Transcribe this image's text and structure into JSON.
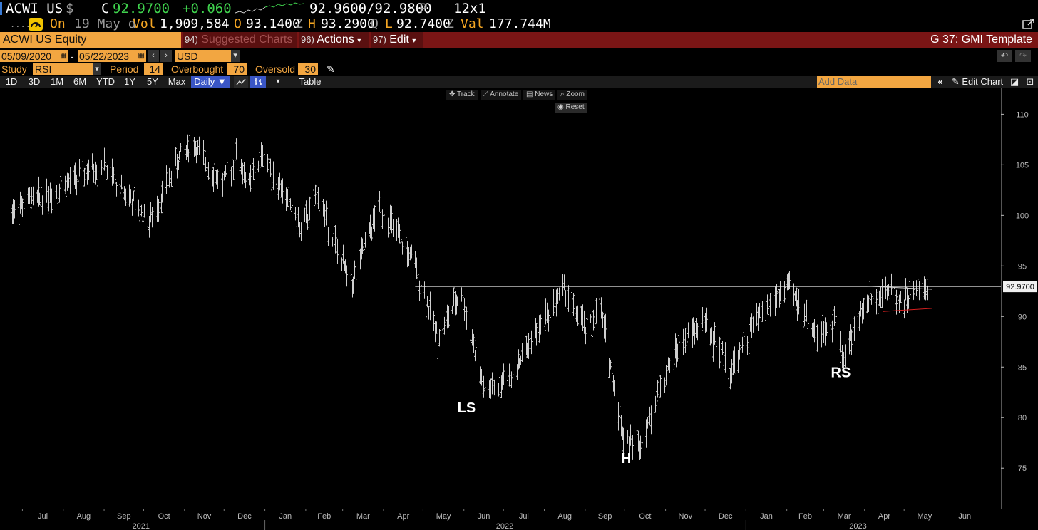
{
  "quote": {
    "ticker": "ACWI US",
    "currency_symbol": "$",
    "close_prefix": "C",
    "last": "92.9700",
    "change": "+0.060",
    "bid_ask": "92.9600/92.9800",
    "bid_ask_suffix": "P",
    "size": "12x1",
    "on_prefix": "On",
    "date": "19 May d",
    "vol_label": "Vol",
    "volume": "1,909,584",
    "open_label": "O",
    "open": "93.1400",
    "open_suffix": "Z",
    "high_label": "H",
    "high": "93.2900",
    "high_suffix": "Q",
    "low_label": "L",
    "low": "92.7400",
    "low_suffix": "Z",
    "val_label": "Val",
    "value": "177.744M"
  },
  "titlebar": {
    "security": "ACWI US Equity",
    "suggested_num": "94)",
    "suggested": "Suggested Charts",
    "actions_num": "96)",
    "actions": "Actions",
    "edit_num": "97)",
    "edit": "Edit",
    "template": "G 37: GMI Template"
  },
  "daterow": {
    "start": "05/09/2020",
    "sep": "-",
    "end": "05/22/2023",
    "currency": "USD"
  },
  "study": {
    "label": "Study",
    "name": "RSI",
    "period_label": "Period",
    "period": "14",
    "overbought_label": "Overbought",
    "overbought": "70",
    "oversold_label": "Oversold",
    "oversold": "30"
  },
  "toolbar": {
    "ranges": [
      "1D",
      "3D",
      "1M",
      "6M",
      "YTD",
      "1Y",
      "5Y",
      "Max"
    ],
    "interval": "Daily",
    "table": "Table",
    "add_data_placeholder": "Add Data",
    "edit_chart": "Edit Chart"
  },
  "chart_controls": {
    "track": "Track",
    "annotate": "Annotate",
    "news": "News",
    "zoom": "Zoom",
    "reset": "Reset"
  },
  "chart_data": {
    "type": "ohlc-bar",
    "title": "",
    "ylim": [
      71,
      112
    ],
    "y_ticks": [
      75,
      80,
      85,
      90,
      95,
      100,
      105,
      110
    ],
    "months": [
      "Jul",
      "Aug",
      "Sep",
      "Oct",
      "Nov",
      "Dec",
      "Jan",
      "Feb",
      "Mar",
      "Apr",
      "May",
      "Jun",
      "Jul",
      "Aug",
      "Sep",
      "Oct",
      "Nov",
      "Dec",
      "Jan",
      "Feb",
      "Mar",
      "Apr",
      "May",
      "Jun"
    ],
    "years": [
      "2021",
      "2022",
      "2023"
    ],
    "last_price_label": "92.9700",
    "last_price": 92.97,
    "anchors": [
      {
        "date": "2021-06-22",
        "y": 100.5
      },
      {
        "date": "2021-07-19",
        "y": 102.0
      },
      {
        "date": "2021-08-30",
        "y": 105.0
      },
      {
        "date": "2021-09-25",
        "y": 101.0
      },
      {
        "date": "2021-10-05",
        "y": 99.3
      },
      {
        "date": "2021-10-30",
        "y": 106.3
      },
      {
        "date": "2021-11-08",
        "y": 107.0
      },
      {
        "date": "2021-11-30",
        "y": 103.0
      },
      {
        "date": "2021-12-10",
        "y": 106.0
      },
      {
        "date": "2021-12-20",
        "y": 103.0
      },
      {
        "date": "2021-12-30",
        "y": 106.0
      },
      {
        "date": "2022-01-20",
        "y": 101.0
      },
      {
        "date": "2022-01-28",
        "y": 98.5
      },
      {
        "date": "2022-02-10",
        "y": 102.0
      },
      {
        "date": "2022-03-07",
        "y": 93.0
      },
      {
        "date": "2022-03-29",
        "y": 101.0
      },
      {
        "date": "2022-04-25",
        "y": 95.0
      },
      {
        "date": "2022-05-12",
        "y": 88.0
      },
      {
        "date": "2022-05-30",
        "y": 92.5
      },
      {
        "date": "2022-06-16",
        "y": 82.5
      },
      {
        "date": "2022-07-05",
        "y": 84.0
      },
      {
        "date": "2022-08-16",
        "y": 92.8
      },
      {
        "date": "2022-09-02",
        "y": 88.5
      },
      {
        "date": "2022-09-12",
        "y": 91.0
      },
      {
        "date": "2022-09-30",
        "y": 78.0
      },
      {
        "date": "2022-10-12",
        "y": 77.5
      },
      {
        "date": "2022-10-25",
        "y": 82.0
      },
      {
        "date": "2022-11-10",
        "y": 87.0
      },
      {
        "date": "2022-11-30",
        "y": 89.5
      },
      {
        "date": "2022-12-20",
        "y": 84.5
      },
      {
        "date": "2023-01-12",
        "y": 90.5
      },
      {
        "date": "2023-02-02",
        "y": 93.0
      },
      {
        "date": "2023-02-24",
        "y": 88.0
      },
      {
        "date": "2023-03-09",
        "y": 89.8
      },
      {
        "date": "2023-03-15",
        "y": 86.0
      },
      {
        "date": "2023-04-03",
        "y": 91.5
      },
      {
        "date": "2023-04-20",
        "y": 92.8
      },
      {
        "date": "2023-04-28",
        "y": 91.5
      },
      {
        "date": "2023-05-19",
        "y": 92.97
      }
    ],
    "annotations": [
      {
        "text": "LS",
        "date": "2022-06-03",
        "y": 80.5
      },
      {
        "text": "H",
        "date": "2022-10-02",
        "y": 75.5
      },
      {
        "text": "RS",
        "date": "2023-03-14",
        "y": 84.0
      }
    ],
    "neckline": 92.97,
    "trend_upper": [
      {
        "date": "2023-04-03",
        "y": 93.0
      },
      {
        "date": "2023-05-22",
        "y": 92.7
      }
    ],
    "trend_lower": [
      {
        "date": "2023-04-15",
        "y": 90.5
      },
      {
        "date": "2023-05-22",
        "y": 90.8
      }
    ],
    "colors": {
      "bars": "#cfcfcf",
      "neckline": "#e8e8e8",
      "support": "#e02020",
      "axis": "#bbbbbb"
    }
  }
}
